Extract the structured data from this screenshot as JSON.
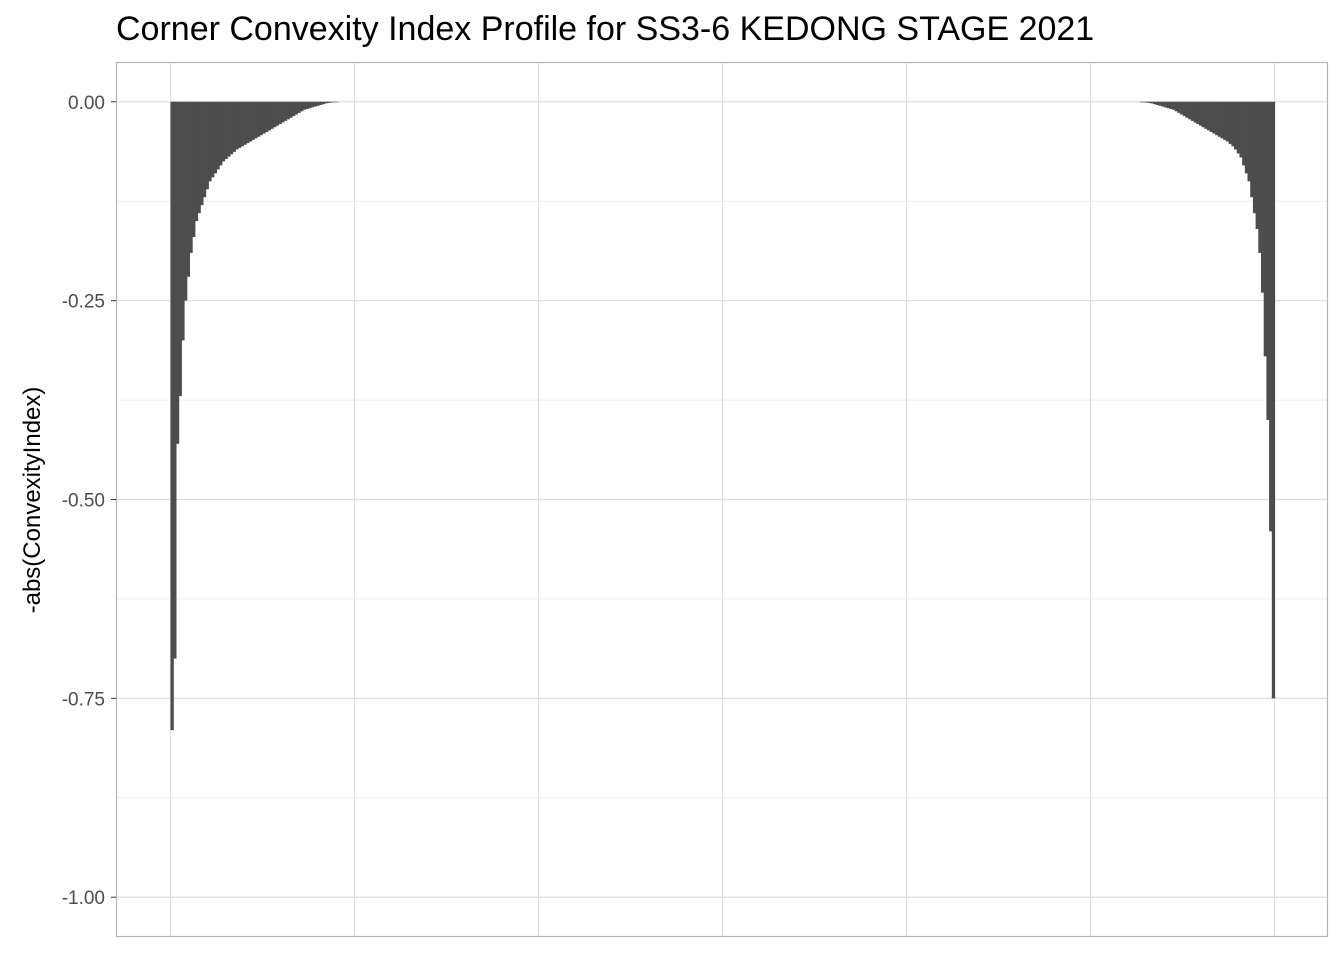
{
  "chart_data": {
    "type": "bar",
    "title": "Corner Convexity Index Profile for SS3-6 KEDONG STAGE 2021",
    "xlabel": "",
    "ylabel": "-abs(ConvexityIndex)",
    "ylim": [
      -1.05,
      0.05
    ],
    "yticks": [
      0.0,
      -0.25,
      -0.5,
      -0.75,
      -1.0
    ],
    "ytick_labels": [
      "0.00",
      "-0.25",
      "-0.50",
      "-0.75",
      "-1.00"
    ],
    "grid": true,
    "legend": "none",
    "bar_color": "#4d4d4d",
    "series": [
      {
        "values": [
          -0.79,
          -0.7,
          -0.43,
          -0.37,
          -0.3,
          -0.25,
          -0.22,
          -0.19,
          -0.17,
          -0.15,
          -0.14,
          -0.13,
          -0.12,
          -0.11,
          -0.1,
          -0.095,
          -0.09,
          -0.085,
          -0.08,
          -0.075,
          -0.072,
          -0.069,
          -0.066,
          -0.063,
          -0.06,
          -0.058,
          -0.056,
          -0.054,
          -0.052,
          -0.05,
          -0.048,
          -0.046,
          -0.044,
          -0.042,
          -0.04,
          -0.038,
          -0.036,
          -0.034,
          -0.032,
          -0.03,
          -0.028,
          -0.026,
          -0.024,
          -0.022,
          -0.02,
          -0.018,
          -0.016,
          -0.014,
          -0.012,
          -0.01,
          -0.009,
          -0.008,
          -0.007,
          -0.006,
          -0.005,
          -0.004,
          -0.003,
          -0.002,
          -0.0015,
          -0.001,
          -0.0005,
          -0.0002,
          0,
          0,
          0,
          0,
          0,
          0,
          0,
          0,
          0,
          0,
          0,
          0,
          0,
          0,
          0,
          0,
          0,
          0,
          0,
          0,
          0,
          0,
          0,
          0,
          0,
          0,
          0,
          0,
          0,
          0,
          0,
          0,
          0,
          0,
          0,
          0,
          0,
          0,
          0,
          0,
          0,
          0,
          0,
          0,
          0,
          0,
          0,
          0,
          0,
          0,
          0,
          0,
          0,
          0,
          0,
          0,
          0,
          0,
          0,
          0,
          0,
          0,
          0,
          0,
          0,
          0,
          0,
          0,
          0,
          0,
          0,
          0,
          0,
          0,
          0,
          0,
          0,
          0,
          0,
          0,
          0,
          0,
          0,
          0,
          0,
          0,
          0,
          0,
          0,
          0,
          0,
          0,
          0,
          0,
          0,
          0,
          0,
          0,
          0,
          0,
          0,
          0,
          0,
          0,
          0,
          0,
          0,
          0,
          0,
          0,
          0,
          0,
          0,
          0,
          0,
          0,
          0,
          0,
          0,
          0,
          0,
          0,
          0,
          0,
          0,
          0,
          0,
          0,
          0,
          0,
          0,
          0,
          0,
          0,
          0,
          0,
          0,
          0,
          0,
          0,
          0,
          0,
          0,
          0,
          0,
          0,
          0,
          0,
          0,
          0,
          0,
          0,
          0,
          0,
          0,
          0,
          0,
          0,
          0,
          0,
          0,
          0,
          0,
          0,
          0,
          0,
          0,
          0,
          0,
          0,
          0,
          0,
          0,
          0,
          0,
          0,
          0,
          0,
          0,
          0,
          0,
          0,
          0,
          0,
          0,
          0,
          0,
          0,
          0,
          0,
          0,
          0,
          0,
          0,
          0,
          0,
          0,
          0,
          0,
          0,
          0,
          0,
          0,
          0,
          0,
          0,
          0,
          0,
          0,
          0,
          0,
          0,
          0,
          0,
          0,
          0,
          0,
          0,
          0,
          0,
          0,
          0,
          0,
          0,
          0,
          0,
          0,
          0,
          0,
          0,
          0,
          0,
          0,
          0,
          0,
          0,
          0,
          0,
          0,
          0,
          0,
          0,
          0,
          0,
          0,
          0,
          0,
          0,
          0,
          0,
          0,
          0,
          0,
          0,
          0,
          0,
          0,
          0,
          0,
          0,
          0,
          0,
          0,
          0,
          0,
          0,
          0,
          0,
          0,
          0,
          0,
          0,
          0,
          0,
          0,
          0,
          0,
          0,
          0,
          0,
          0,
          0,
          0,
          0,
          0,
          0,
          0,
          0,
          0,
          0,
          0,
          0,
          0,
          0,
          0,
          0,
          0,
          -0.0002,
          -0.0005,
          -0.001,
          -0.0015,
          -0.002,
          -0.003,
          -0.004,
          -0.005,
          -0.006,
          -0.007,
          -0.008,
          -0.009,
          -0.01,
          -0.012,
          -0.014,
          -0.016,
          -0.018,
          -0.02,
          -0.022,
          -0.024,
          -0.026,
          -0.028,
          -0.03,
          -0.032,
          -0.034,
          -0.036,
          -0.038,
          -0.04,
          -0.042,
          -0.044,
          -0.046,
          -0.048,
          -0.05,
          -0.053,
          -0.056,
          -0.06,
          -0.065,
          -0.07,
          -0.08,
          -0.09,
          -0.1,
          -0.12,
          -0.14,
          -0.16,
          -0.19,
          -0.24,
          -0.32,
          -0.4,
          -0.54,
          -0.75
        ]
      }
    ]
  }
}
